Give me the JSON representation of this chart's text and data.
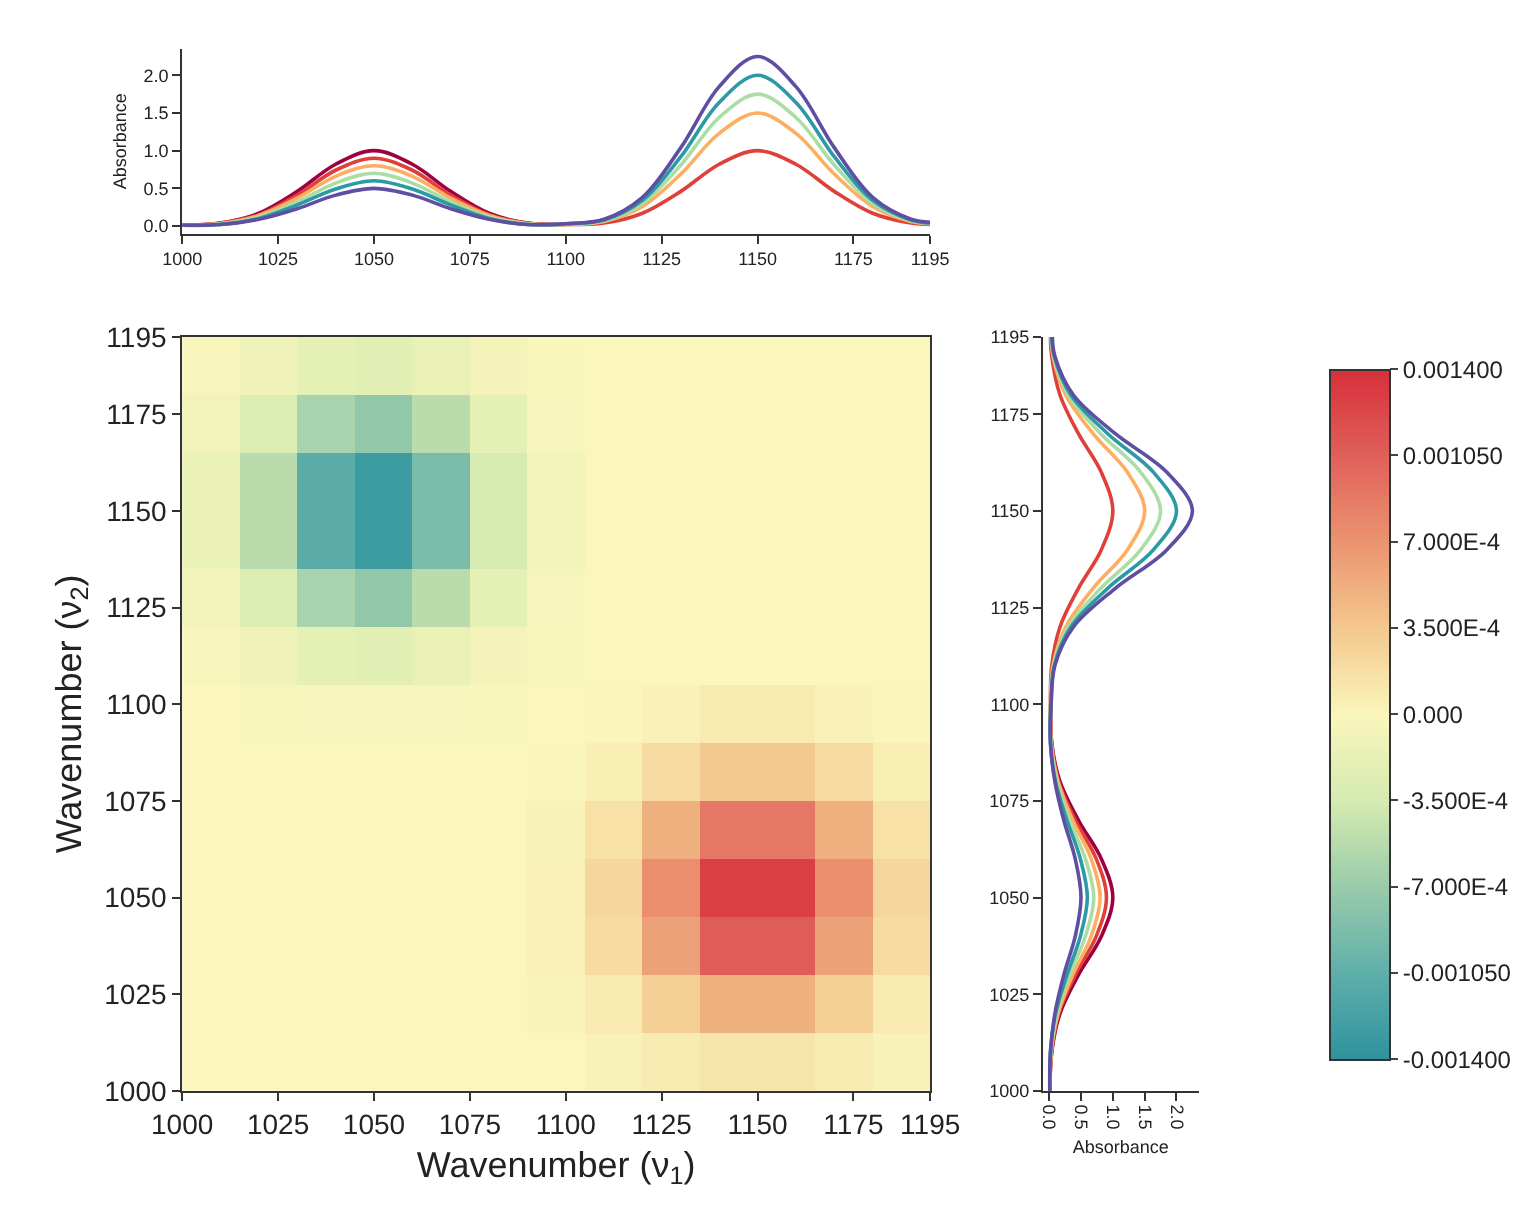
{
  "chart_data": [
    {
      "type": "line",
      "ylabel": "Absorbance",
      "x": [
        1000,
        1010,
        1020,
        1030,
        1040,
        1050,
        1060,
        1070,
        1080,
        1090,
        1100,
        1110,
        1120,
        1130,
        1140,
        1150,
        1160,
        1170,
        1180,
        1190,
        1195
      ],
      "series": [
        {
          "color": "#9e0142",
          "values": [
            0.01,
            0.04,
            0.17,
            0.46,
            0.82,
            1,
            0.82,
            0.46,
            0.17,
            0.04,
            0.02,
            null,
            null,
            null,
            null,
            null,
            null,
            null,
            null,
            null,
            null
          ]
        },
        {
          "color": "#e0403a",
          "values": [
            0.01,
            0.04,
            0.15,
            0.41,
            0.74,
            0.9,
            0.74,
            0.41,
            0.15,
            0.04,
            0.02,
            0.04,
            0.17,
            0.46,
            0.82,
            1,
            0.82,
            0.46,
            0.17,
            0.04,
            0.02
          ]
        },
        {
          "color": "#fdae61",
          "values": [
            0.01,
            0.03,
            0.14,
            0.37,
            0.66,
            0.8,
            0.66,
            0.37,
            0.14,
            0.03,
            0.02,
            0.06,
            0.26,
            0.69,
            1.23,
            1.5,
            1.23,
            0.69,
            0.26,
            0.06,
            0.03
          ]
        },
        {
          "color": "#abdda4",
          "values": [
            0.01,
            0.03,
            0.12,
            0.32,
            0.57,
            0.7,
            0.57,
            0.32,
            0.12,
            0.03,
            0.02,
            0.07,
            0.3,
            0.81,
            1.44,
            1.75,
            1.44,
            0.81,
            0.3,
            0.07,
            0.04
          ]
        },
        {
          "color": "#2b9aa6",
          "values": [
            0.01,
            0.02,
            0.1,
            0.28,
            0.49,
            0.6,
            0.49,
            0.28,
            0.1,
            0.02,
            0.03,
            0.08,
            0.34,
            0.92,
            1.64,
            2.0,
            1.64,
            0.92,
            0.34,
            0.08,
            0.04
          ]
        },
        {
          "color": "#5e4fa2",
          "values": [
            0.01,
            0.02,
            0.09,
            0.23,
            0.41,
            0.5,
            0.41,
            0.23,
            0.09,
            0.02,
            0.03,
            0.09,
            0.38,
            1.04,
            1.85,
            2.25,
            1.85,
            1.04,
            0.38,
            0.09,
            0.05
          ]
        }
      ],
      "xlim": [
        1000,
        1195
      ],
      "xticks": [
        1000,
        1025,
        1050,
        1075,
        1100,
        1125,
        1150,
        1175,
        1195
      ],
      "ylim": [
        -0.1,
        2.35
      ],
      "yticks": [
        {
          "value": 0,
          "label": "0.0"
        },
        {
          "value": 0.5,
          "label": "0.5"
        },
        {
          "value": 1,
          "label": "1.0"
        },
        {
          "value": 1.5,
          "label": "1.5"
        },
        {
          "value": 2,
          "label": "2.0"
        }
      ]
    },
    {
      "type": "heatmap",
      "xlabel": "Wavenumber (ν$_{1}$)",
      "ylabel": "Wavenumber (ν$_{2}$)",
      "x": [
        1007.5,
        1022.5,
        1037.5,
        1052.5,
        1067.5,
        1082.5,
        1097.5,
        1112.5,
        1127.5,
        1142.5,
        1157.5,
        1172.5,
        1187.5
      ],
      "y": [
        1187.5,
        1172.5,
        1157.5,
        1142.5,
        1127.5,
        1112.5,
        1097.5,
        1082.5,
        1067.5,
        1052.5,
        1037.5,
        1022.5,
        1007.5
      ],
      "cells": [
        [
          -3e-05,
          -9e-05,
          -0.0002,
          -0.00024,
          -0.00016,
          -6e-05,
          -1e-05,
          0,
          0,
          0,
          0,
          0,
          0
        ],
        [
          -8e-05,
          -0.00029,
          -0.00061,
          -0.00074,
          -0.00051,
          -0.0002,
          -4e-05,
          0,
          0,
          0,
          0,
          0,
          0
        ],
        [
          -0.00014,
          -0.00051,
          -0.00107,
          -0.00129,
          -0.00089,
          -0.00035,
          -8e-05,
          0,
          0,
          0,
          0,
          0,
          0
        ],
        [
          -0.00014,
          -0.00051,
          -0.00107,
          -0.00129,
          -0.00089,
          -0.00035,
          -8e-05,
          0,
          0,
          0,
          0,
          0,
          0
        ],
        [
          -8e-05,
          -0.00029,
          -0.00061,
          -0.00074,
          -0.00051,
          -0.0002,
          -4e-05,
          0,
          0,
          0,
          0,
          0,
          0
        ],
        [
          -3e-05,
          -9e-05,
          -0.0002,
          -0.00024,
          -0.00016,
          -6e-05,
          -1e-05,
          0,
          0,
          0,
          0,
          0,
          0
        ],
        [
          0,
          -2e-05,
          -4e-05,
          -4e-05,
          -3e-05,
          -1e-05,
          0,
          1e-05,
          4e-05,
          8e-05,
          8e-05,
          4e-05,
          1e-05
        ],
        [
          0,
          0,
          0,
          0,
          0,
          0,
          1e-05,
          6e-05,
          0.0002,
          0.00035,
          0.00035,
          0.0002,
          6e-05
        ],
        [
          0,
          0,
          0,
          0,
          0,
          0,
          3e-05,
          0.00016,
          0.00051,
          0.00089,
          0.00089,
          0.00051,
          0.00016
        ],
        [
          0,
          0,
          0,
          0,
          0,
          0,
          4e-05,
          0.00024,
          0.00074,
          0.00129,
          0.00129,
          0.00074,
          0.00024
        ],
        [
          0,
          0,
          0,
          0,
          0,
          0,
          4e-05,
          0.0002,
          0.00061,
          0.00107,
          0.00107,
          0.00061,
          0.0002
        ],
        [
          0,
          0,
          0,
          0,
          0,
          0,
          2e-05,
          9e-05,
          0.00029,
          0.00051,
          0.00051,
          0.00029,
          9e-05
        ],
        [
          0,
          0,
          0,
          0,
          0,
          0,
          0,
          3e-05,
          8e-05,
          0.00014,
          0.00014,
          8e-05,
          3e-05
        ]
      ],
      "xlim": [
        1000,
        1195
      ],
      "xticks": [
        1000,
        1025,
        1050,
        1075,
        1100,
        1125,
        1150,
        1175,
        1195
      ],
      "ylim": [
        1000,
        1195
      ],
      "yticks": [
        1000,
        1025,
        1050,
        1075,
        1100,
        1125,
        1150,
        1175,
        1195
      ],
      "clim": [
        -0.0014,
        0.0014
      ],
      "cticks": [
        {
          "value": 0.0014,
          "label": "0.001400"
        },
        {
          "value": 0.00105,
          "label": "0.001050"
        },
        {
          "value": 0.0007,
          "label": "7.000E-4"
        },
        {
          "value": 0.00035,
          "label": "3.500E-4"
        },
        {
          "value": 0,
          "label": "0.000"
        },
        {
          "value": -0.00035,
          "label": "-3.500E-4"
        },
        {
          "value": -0.0007,
          "label": "-7.000E-4"
        },
        {
          "value": -0.00105,
          "label": "-0.001050"
        },
        {
          "value": -0.0014,
          "label": "-0.001400"
        }
      ],
      "colors": [
        "#d7303a",
        "#e0605a",
        "#eb9470",
        "#f3c88e",
        "#faf6bc",
        "#d5ebb0",
        "#99cbaa",
        "#5fafaa",
        "#2e929e"
      ]
    },
    {
      "type": "line",
      "orientation": "horizontal",
      "xlabel": "Absorbance",
      "x": [
        1000,
        1010,
        1020,
        1030,
        1040,
        1050,
        1060,
        1070,
        1080,
        1090,
        1100,
        1110,
        1120,
        1130,
        1140,
        1150,
        1160,
        1170,
        1180,
        1190,
        1195
      ],
      "series": [
        {
          "color": "#9e0142",
          "values": [
            0.01,
            0.04,
            0.17,
            0.46,
            0.82,
            1,
            0.82,
            0.46,
            0.17,
            0.04,
            0.02,
            null,
            null,
            null,
            null,
            null,
            null,
            null,
            null,
            null,
            null
          ]
        },
        {
          "color": "#e0403a",
          "values": [
            0.01,
            0.04,
            0.15,
            0.41,
            0.74,
            0.9,
            0.74,
            0.41,
            0.15,
            0.04,
            0.02,
            0.04,
            0.17,
            0.46,
            0.82,
            1,
            0.82,
            0.46,
            0.17,
            0.04,
            0.02
          ]
        },
        {
          "color": "#fdae61",
          "values": [
            0.01,
            0.03,
            0.14,
            0.37,
            0.66,
            0.8,
            0.66,
            0.37,
            0.14,
            0.03,
            0.02,
            0.06,
            0.26,
            0.69,
            1.23,
            1.5,
            1.23,
            0.69,
            0.26,
            0.06,
            0.03
          ]
        },
        {
          "color": "#abdda4",
          "values": [
            0.01,
            0.03,
            0.12,
            0.32,
            0.57,
            0.7,
            0.57,
            0.32,
            0.12,
            0.03,
            0.02,
            0.07,
            0.3,
            0.81,
            1.44,
            1.75,
            1.44,
            0.81,
            0.3,
            0.07,
            0.04
          ]
        },
        {
          "color": "#2b9aa6",
          "values": [
            0.01,
            0.02,
            0.1,
            0.28,
            0.49,
            0.6,
            0.49,
            0.28,
            0.1,
            0.02,
            0.03,
            0.08,
            0.34,
            0.92,
            1.64,
            2.0,
            1.64,
            0.92,
            0.34,
            0.08,
            0.04
          ]
        },
        {
          "color": "#5e4fa2",
          "values": [
            0.01,
            0.02,
            0.09,
            0.23,
            0.41,
            0.5,
            0.41,
            0.23,
            0.09,
            0.02,
            0.03,
            0.09,
            0.38,
            1.04,
            1.85,
            2.25,
            1.85,
            1.04,
            0.38,
            0.09,
            0.05
          ]
        }
      ],
      "ylim": [
        1000,
        1195
      ],
      "yticks": [
        1000,
        1025,
        1050,
        1075,
        1100,
        1125,
        1150,
        1175,
        1195
      ],
      "xlim": [
        -0.1,
        2.35
      ],
      "xticks": [
        {
          "value": 0,
          "label": "0.0"
        },
        {
          "value": 0.5,
          "label": "0.5"
        },
        {
          "value": 1,
          "label": "1.0"
        },
        {
          "value": 1.5,
          "label": "1.5"
        },
        {
          "value": 2,
          "label": "2.0"
        }
      ]
    }
  ]
}
